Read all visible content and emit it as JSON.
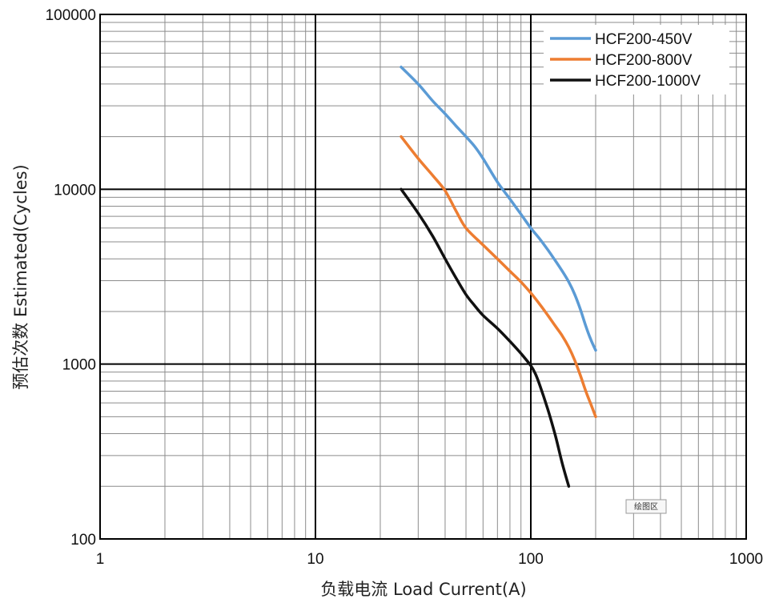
{
  "chart_data": {
    "type": "line",
    "title": "",
    "xlabel": "负载电流 Load Current(A)",
    "ylabel": "预估次数 Estimated(Cycles)",
    "x_scale": "log",
    "y_scale": "log",
    "xlim": [
      1,
      1000
    ],
    "ylim": [
      100,
      100000
    ],
    "x_ticks": [
      "1",
      "10",
      "100",
      "1000"
    ],
    "y_ticks": [
      "100",
      "1000",
      "10000",
      "100000"
    ],
    "grid": true,
    "legend_position": "top-right",
    "series": [
      {
        "name": "HCF200-450V",
        "color": "#5b9bd5",
        "x": [
          25,
          30,
          35,
          40,
          45,
          50,
          55,
          60,
          70,
          80,
          90,
          100,
          110,
          120,
          130,
          140,
          150,
          160,
          170,
          180,
          190,
          200
        ],
        "y": [
          50000,
          40000,
          32000,
          27000,
          23000,
          20000,
          17500,
          15000,
          11000,
          8800,
          7200,
          6000,
          5200,
          4500,
          3900,
          3400,
          2950,
          2500,
          2050,
          1650,
          1380,
          1200
        ]
      },
      {
        "name": "HCF200-800V",
        "color": "#ed7d31",
        "x": [
          25,
          30,
          35,
          40,
          45,
          50,
          60,
          70,
          80,
          90,
          100,
          110,
          120,
          130,
          140,
          150,
          160,
          170,
          180,
          190,
          200
        ],
        "y": [
          20000,
          15000,
          12000,
          9800,
          7500,
          6000,
          4800,
          4000,
          3400,
          2950,
          2550,
          2200,
          1900,
          1650,
          1450,
          1250,
          1050,
          860,
          700,
          590,
          500
        ]
      },
      {
        "name": "HCF200-1000V",
        "color": "#111111",
        "x": [
          25,
          30,
          35,
          40,
          45,
          50,
          55,
          60,
          70,
          80,
          90,
          100,
          105,
          110,
          120,
          130,
          140,
          150
        ],
        "y": [
          10000,
          7300,
          5400,
          4000,
          3100,
          2500,
          2150,
          1900,
          1600,
          1350,
          1150,
          980,
          880,
          760,
          550,
          390,
          270,
          200
        ]
      }
    ]
  },
  "tooltip": {
    "label": "绘图区"
  }
}
